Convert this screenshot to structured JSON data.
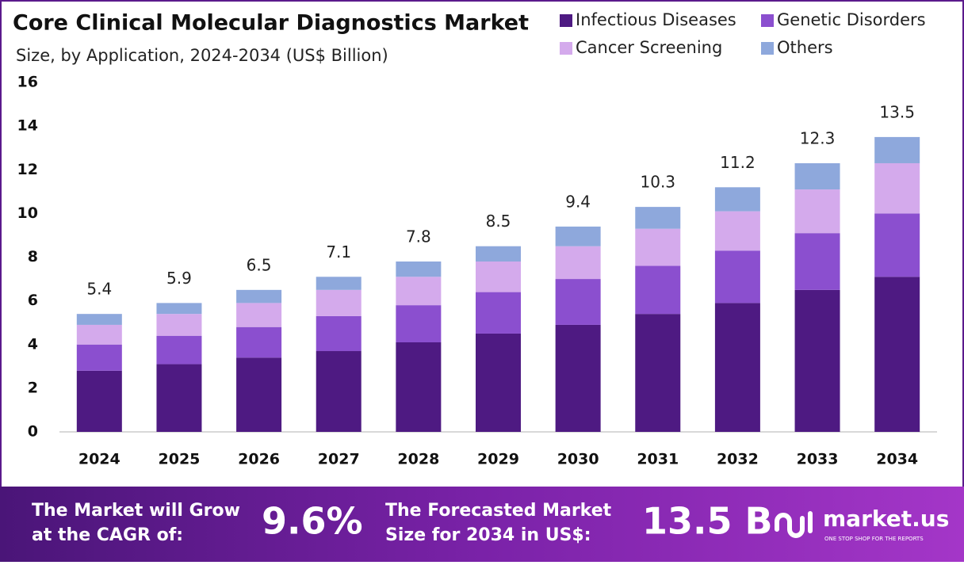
{
  "chart_data": {
    "type": "stacked-bar",
    "title": "Core Clinical Molecular Diagnostics Market",
    "subtitle": "Size, by Application, 2024-2034 (US$ Billion)",
    "categories": [
      "2024",
      "2025",
      "2026",
      "2027",
      "2028",
      "2029",
      "2030",
      "2031",
      "2032",
      "2033",
      "2034"
    ],
    "series": [
      {
        "name": "Infectious Diseases",
        "color": "#4e1a82",
        "values": [
          2.8,
          3.1,
          3.4,
          3.7,
          4.1,
          4.5,
          4.9,
          5.4,
          5.9,
          6.5,
          7.1
        ]
      },
      {
        "name": "Genetic Disorders",
        "color": "#8b4fcf",
        "values": [
          1.2,
          1.3,
          1.4,
          1.6,
          1.7,
          1.9,
          2.1,
          2.2,
          2.4,
          2.6,
          2.9
        ]
      },
      {
        "name": "Cancer Screening",
        "color": "#d4aaec",
        "values": [
          0.9,
          1.0,
          1.1,
          1.2,
          1.3,
          1.4,
          1.5,
          1.7,
          1.8,
          2.0,
          2.3
        ]
      },
      {
        "name": "Others",
        "color": "#8ea8dc",
        "values": [
          0.5,
          0.5,
          0.6,
          0.6,
          0.7,
          0.7,
          0.9,
          1.0,
          1.1,
          1.2,
          1.2
        ]
      }
    ],
    "totals": [
      5.4,
      5.9,
      6.5,
      7.1,
      7.8,
      8.5,
      9.4,
      10.3,
      11.2,
      12.3,
      13.5
    ],
    "ylim": [
      0,
      16
    ],
    "yticks": [
      0,
      2,
      4,
      6,
      8,
      10,
      12,
      14,
      16
    ],
    "grid": false,
    "legend": "top-right"
  },
  "footer": {
    "cagr_text_1": "The Market will Grow",
    "cagr_text_2": "at the CAGR of:",
    "cagr": "9.6%",
    "forecast_text_1": "The Forecasted Market",
    "forecast_text_2": "Size for 2034 in US$:",
    "forecast": "13.5 B",
    "brand": "market.us",
    "tagline": "ONE STOP SHOP FOR THE REPORTS"
  }
}
